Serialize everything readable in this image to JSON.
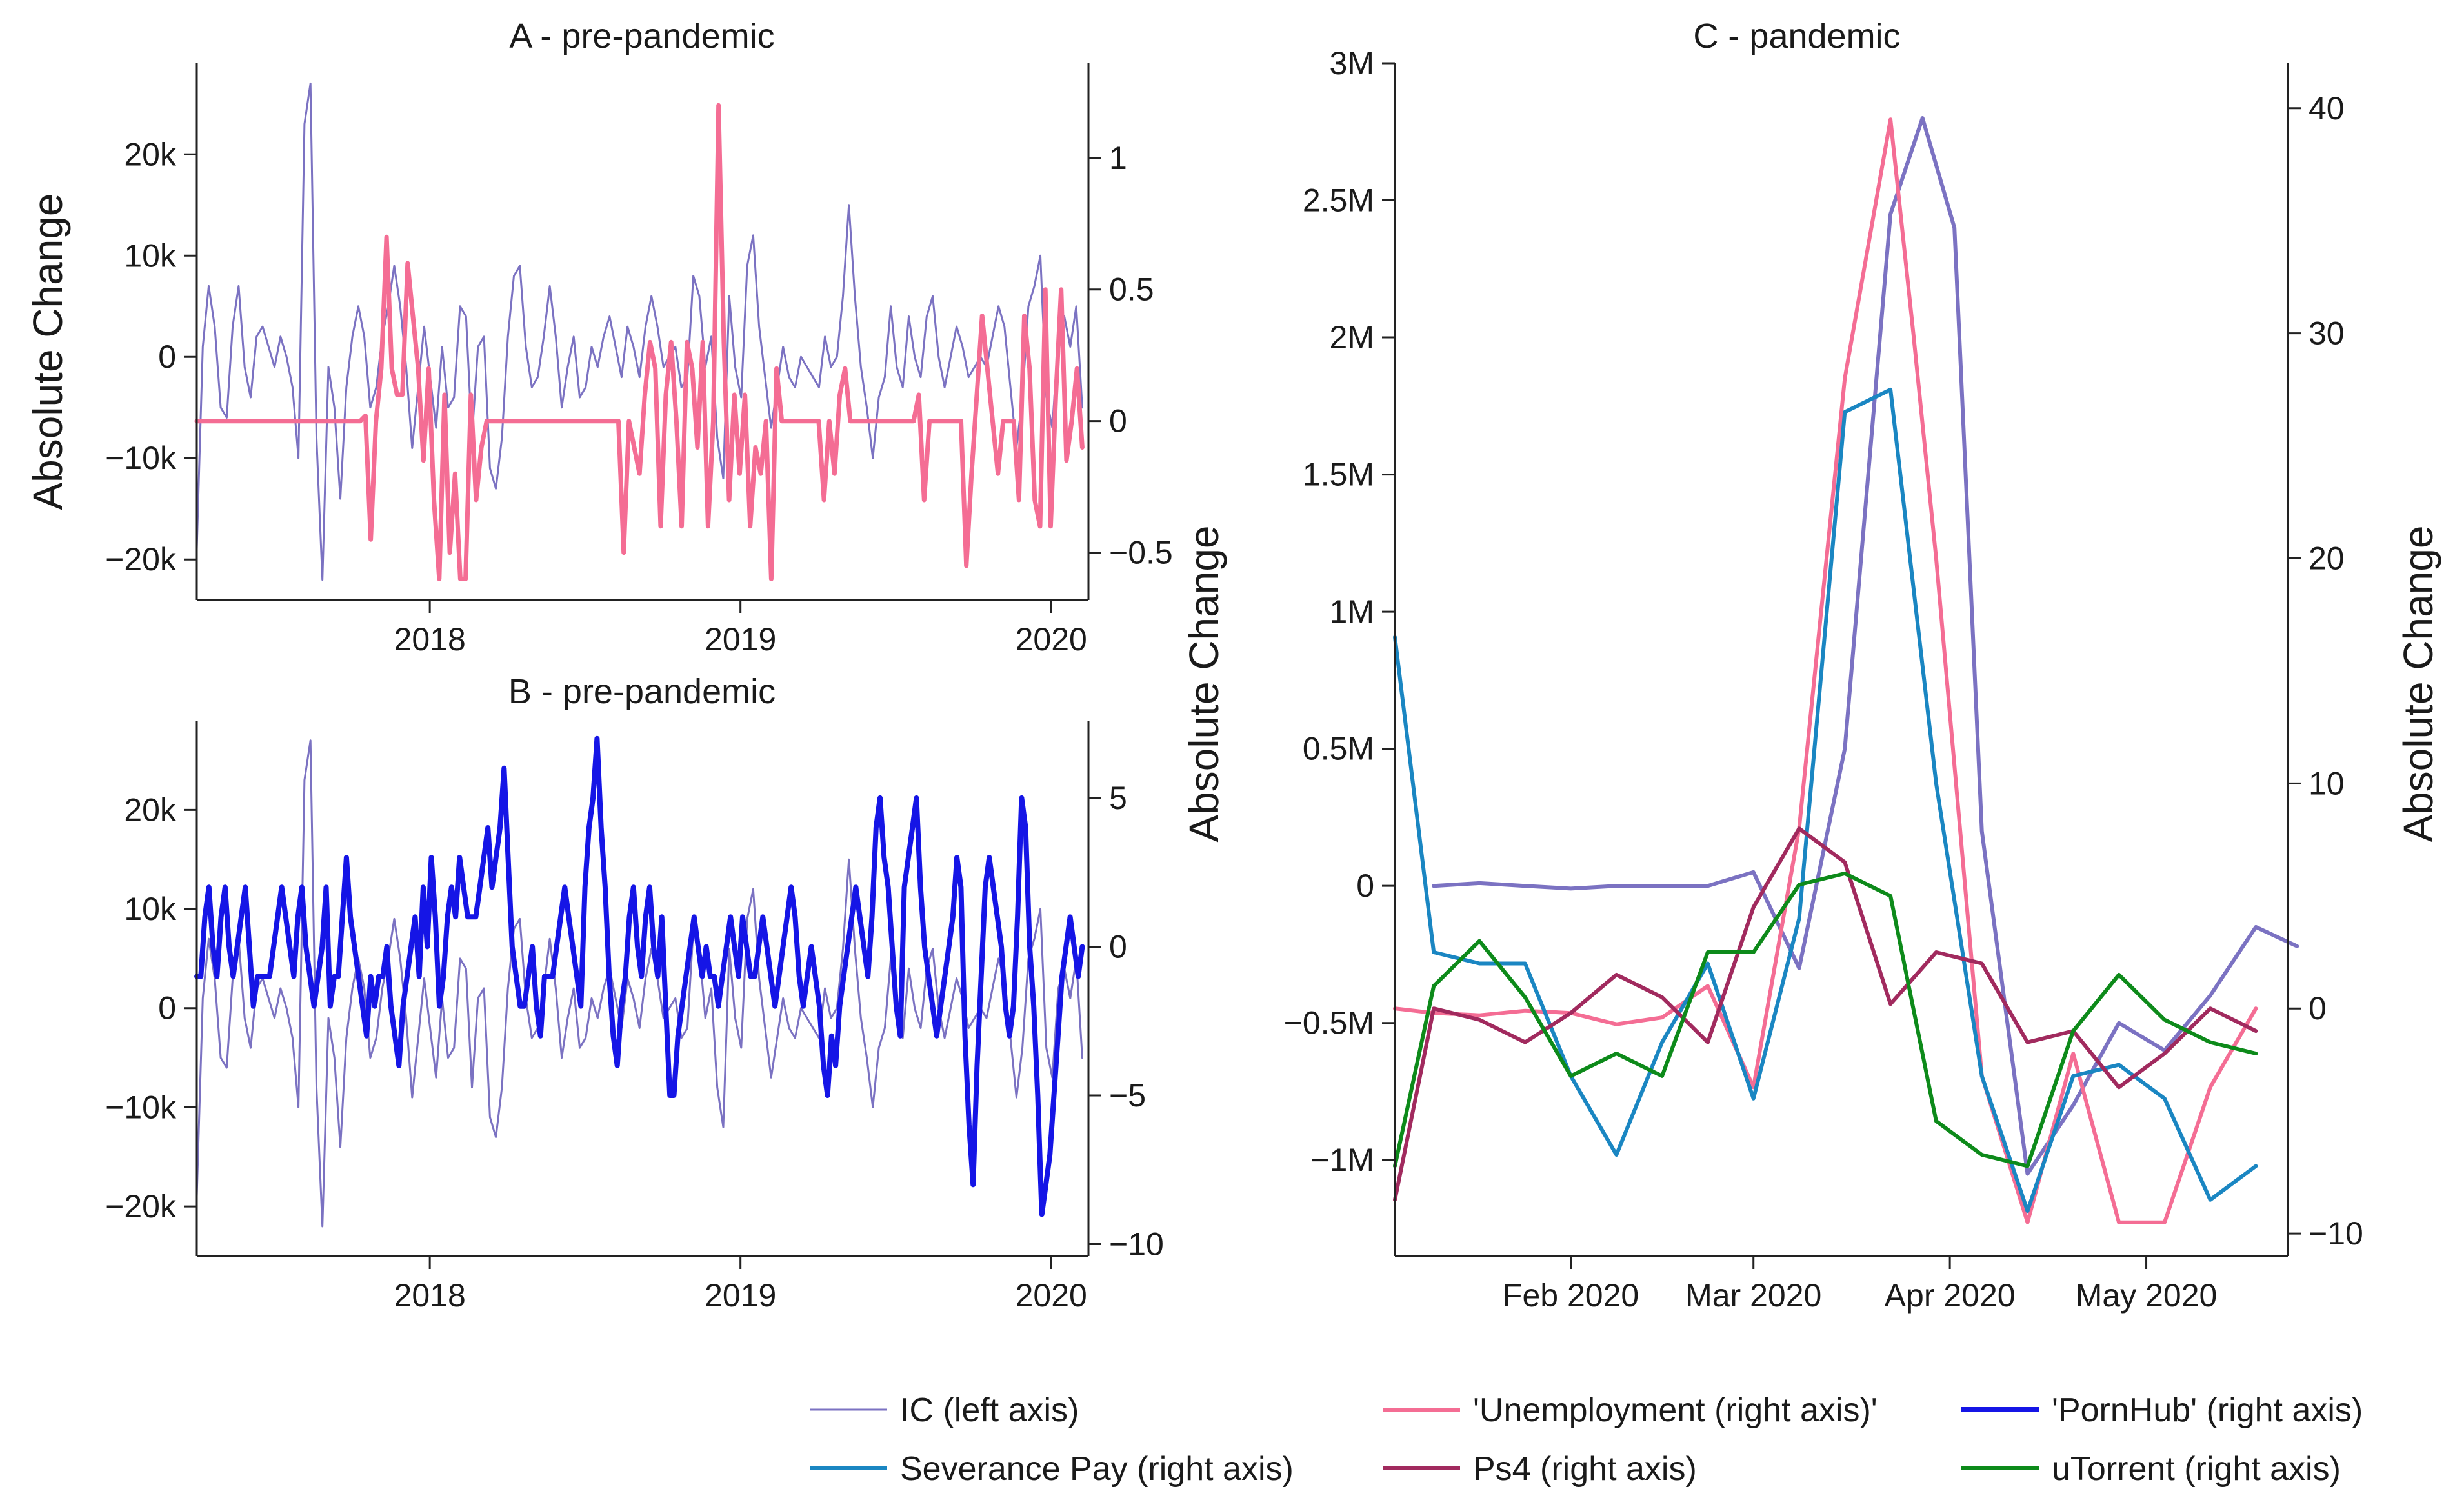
{
  "chart_data": [
    {
      "panel": "A",
      "type": "line",
      "title": "A - pre-pandemic",
      "ylabel_left": "Absolute Change",
      "ylabel_right": "",
      "x_ticks": [
        "2018",
        "2019",
        "2020"
      ],
      "x_tick_values": [
        2018.0,
        2019.0,
        2020.0
      ],
      "xlim": [
        2017.25,
        2020.12
      ],
      "left_ylim": [
        -24000,
        29000
      ],
      "left_ticks": [
        "20k",
        "10k",
        "0",
        "−10k",
        "−20k"
      ],
      "left_tick_values": [
        20000,
        10000,
        0,
        -10000,
        -20000
      ],
      "right_ylim": [
        -0.68,
        1.36
      ],
      "right_ticks": [
        "1",
        "0.5",
        "0",
        "−0.5"
      ],
      "right_tick_values": [
        1,
        0.5,
        0,
        -0.5
      ],
      "series": [
        {
          "name": "IC",
          "axis": "left",
          "color": "#7b72c2",
          "width": 3,
          "values": [
            -19000,
            1000,
            7000,
            3000,
            -5000,
            -6000,
            3000,
            7000,
            -1000,
            -4000,
            2000,
            3000,
            1000,
            -1000,
            2000,
            0,
            -3000,
            -10000,
            23000,
            27000,
            -8000,
            -22000,
            -1000,
            -5000,
            -14000,
            -3000,
            2000,
            5000,
            2000,
            -5000,
            -3000,
            2000,
            5000,
            9000,
            5000,
            -1000,
            -9000,
            -3000,
            3000,
            -2000,
            -7000,
            1000,
            -5000,
            -4000,
            5000,
            4000,
            -8000,
            1000,
            2000,
            -11000,
            -13000,
            -8000,
            2000,
            8000,
            9000,
            1000,
            -3000,
            -2000,
            2000,
            7000,
            2000,
            -5000,
            -1000,
            2000,
            -4000,
            -3000,
            1000,
            -1000,
            2000,
            4000,
            1000,
            -2000,
            3000,
            1000,
            -2000,
            3000,
            6000,
            3000,
            -1000,
            0,
            1000,
            -3000,
            -2000,
            8000,
            6000,
            -1000,
            2000,
            -8000,
            -12000,
            6000,
            -1000,
            -4000,
            9000,
            12000,
            3000,
            -2000,
            -7000,
            -3000,
            1000,
            -2000,
            -3000,
            0,
            -1000,
            -2000,
            -3000,
            2000,
            -1000,
            0,
            6000,
            15000,
            6000,
            -1000,
            -5000,
            -10000,
            -4000,
            -2000,
            5000,
            -1000,
            -3000,
            4000,
            0,
            -2000,
            4000,
            6000,
            0,
            -3000,
            0,
            3000,
            1000,
            -2000,
            -1000,
            0,
            -1000,
            2000,
            5000,
            3000,
            -3000,
            -9000,
            -4000,
            5000,
            7000,
            10000,
            -4000,
            -7000,
            2000,
            4000,
            1000,
            5000,
            -5000
          ]
        },
        {
          "name": "'Unemployment",
          "axis": "right",
          "color": "#f46d94",
          "width": 7,
          "values": [
            0,
            0,
            0,
            0,
            0,
            0,
            0,
            0,
            0,
            0,
            0,
            0,
            0,
            0,
            0,
            0,
            0,
            0,
            0,
            0,
            0,
            0,
            0,
            0,
            0,
            0,
            0,
            0,
            0,
            0,
            0,
            0,
            0.02,
            -0.45,
            0,
            0.2,
            0.7,
            0.2,
            0.1,
            0.1,
            0.6,
            0.4,
            0.2,
            -0.15,
            0.2,
            -0.3,
            -0.6,
            0.1,
            -0.5,
            -0.2,
            -0.6,
            -0.6,
            0.1,
            -0.3,
            -0.1,
            0,
            0,
            0,
            0,
            0,
            0,
            0,
            0,
            0,
            0,
            0,
            0,
            0,
            0,
            0,
            0,
            0,
            0,
            0,
            0,
            0,
            0,
            0,
            0,
            0,
            0,
            -0.5,
            0,
            -0.1,
            -0.2,
            0.1,
            0.3,
            0.2,
            -0.4,
            0.1,
            0.3,
            0,
            -0.4,
            0.3,
            0.2,
            -0.1,
            0.3,
            -0.4,
            0,
            1.2,
            0.3,
            -0.3,
            0.1,
            -0.2,
            0.1,
            -0.4,
            -0.1,
            -0.2,
            0,
            -0.6,
            0.2,
            0,
            0,
            0,
            0,
            0,
            0,
            0,
            0,
            -0.3,
            0,
            -0.2,
            0.1,
            0.2,
            0,
            0,
            0,
            0,
            0,
            0,
            0,
            0,
            0,
            0,
            0,
            0,
            0,
            0.1,
            -0.3,
            0,
            0,
            0,
            0,
            0,
            0,
            0,
            -0.55,
            -0.2,
            0.1,
            0.4,
            0.2,
            0,
            -0.2,
            0,
            0,
            0,
            -0.3,
            0.4,
            0.2,
            -0.3,
            -0.4,
            0.5,
            -0.4,
            0.1,
            0.5,
            -0.15,
            0,
            0.2,
            -0.1
          ]
        }
      ]
    },
    {
      "panel": "B",
      "type": "line",
      "title": "B - pre-pandemic",
      "ylabel_left": "",
      "ylabel_right": "",
      "x_ticks": [
        "2018",
        "2019",
        "2020"
      ],
      "x_tick_values": [
        2018.0,
        2019.0,
        2020.0
      ],
      "xlim": [
        2017.25,
        2020.12
      ],
      "left_ylim": [
        -25000,
        29000
      ],
      "left_ticks": [
        "20k",
        "10k",
        "0",
        "−10k",
        "−20k"
      ],
      "left_tick_values": [
        20000,
        10000,
        0,
        -10000,
        -20000
      ],
      "right_ylim": [
        -10.4,
        7.6
      ],
      "right_ticks": [
        "5",
        "0",
        "−5",
        "−10"
      ],
      "right_tick_values": [
        5,
        0,
        -5,
        -10
      ],
      "series": [
        {
          "name": "IC",
          "axis": "left",
          "color": "#7b72c2",
          "width": 3,
          "ref": "A.IC"
        },
        {
          "name": "'PornHub'",
          "axis": "right",
          "color": "#1515e6",
          "width": 8,
          "values": [
            -1,
            -1,
            1,
            2,
            0,
            -1,
            1,
            2,
            0,
            -1,
            0,
            1,
            2,
            0,
            -2,
            -1,
            -1,
            -1,
            -1,
            0,
            1,
            2,
            1,
            0,
            -1,
            1,
            2,
            0,
            -1,
            -2,
            -1,
            0,
            2,
            -2,
            -1,
            -1,
            1,
            3,
            1,
            0,
            -1,
            -2,
            -3,
            -1,
            -2,
            -1,
            -1,
            0,
            -2,
            -3,
            -4,
            -2,
            -1,
            0,
            1,
            -1,
            2,
            0,
            3,
            1,
            -2,
            -1,
            1,
            2,
            1,
            3,
            2,
            1,
            1,
            1,
            2,
            3,
            4,
            2,
            3,
            4,
            6,
            3,
            0,
            -1,
            -2,
            -2,
            -1,
            0,
            -2,
            -3,
            -1,
            -1,
            -1,
            0,
            1,
            2,
            1,
            0,
            -1,
            -2,
            2,
            4,
            5,
            7,
            4,
            2,
            -1,
            -3,
            -4,
            -2,
            -1,
            1,
            2,
            0,
            -1,
            1,
            2,
            0,
            -1,
            1,
            -2,
            -5,
            -5,
            -3,
            -2,
            -1,
            0,
            1,
            0,
            -1,
            0,
            -1,
            -1,
            -2,
            -1,
            0,
            1,
            0,
            -1,
            1,
            0,
            -1,
            -1,
            0,
            1,
            0,
            -1,
            -2,
            -1,
            0,
            1,
            2,
            1,
            -1,
            -2,
            -1,
            0,
            -1,
            -2,
            -4,
            -5,
            -3,
            -4,
            -2,
            -1,
            0,
            1,
            2,
            1,
            0,
            -1,
            1,
            4,
            5,
            3,
            2,
            0,
            -2,
            -3,
            2,
            3,
            4,
            5,
            2,
            0,
            -1,
            -2,
            -3,
            -2,
            -1,
            0,
            1,
            3,
            2,
            -3,
            -6,
            -8,
            -4,
            -1,
            2,
            3,
            2,
            1,
            0,
            -2,
            -3,
            -2,
            1,
            5,
            4,
            0,
            -2,
            -5,
            -9,
            -8,
            -7,
            -5,
            -3,
            -1,
            0,
            1,
            0,
            -1,
            0
          ]
        }
      ]
    },
    {
      "panel": "C",
      "type": "line",
      "title": "C - pandemic",
      "ylabel_left": "Absolute Change",
      "ylabel_right": "Absolute Change",
      "x_ticks": [
        "Feb 2020",
        "Mar 2020",
        "Apr 2020",
        "May 2020"
      ],
      "x_tick_values": [
        4,
        8,
        12.3,
        16.6
      ],
      "xlim": [
        0.15,
        19.7
      ],
      "left_ylim": [
        -1.35,
        3.0
      ],
      "left_units": "millions",
      "left_ticks": [
        "3M",
        "2.5M",
        "2M",
        "1.5M",
        "1M",
        "0.5M",
        "0",
        "−0.5M",
        "−1M"
      ],
      "left_tick_values": [
        3,
        2.5,
        2,
        1.5,
        1,
        0.5,
        0,
        -0.5,
        -1
      ],
      "right_ylim": [
        -11,
        42
      ],
      "right_ticks": [
        "40",
        "30",
        "20",
        "10",
        "0",
        "−10"
      ],
      "right_tick_values": [
        40,
        30,
        20,
        10,
        0,
        -10
      ],
      "series": [
        {
          "name": "IC",
          "axis": "left",
          "color": "#7b72c2",
          "width": 6,
          "x": [
            1,
            2,
            3,
            4,
            5,
            6,
            7,
            8,
            9,
            10,
            11,
            11.7,
            12.4,
            13,
            14,
            15,
            16,
            17,
            18,
            19,
            19.9
          ],
          "values": [
            0.0,
            0.01,
            0.0,
            -0.01,
            0.0,
            0.0,
            0.0,
            0.05,
            -0.3,
            0.5,
            2.45,
            2.8,
            2.4,
            0.2,
            -1.05,
            -0.8,
            -0.5,
            -0.6,
            -0.4,
            -0.15,
            -0.22
          ]
        },
        {
          "name": "'Unemployment",
          "axis": "right",
          "color": "#f46d94",
          "width": 6,
          "x": [
            0.15,
            1,
            2,
            3,
            4,
            5,
            6,
            7,
            8,
            9,
            10,
            11,
            11.5,
            12,
            13,
            14,
            15,
            16,
            17,
            18,
            19
          ],
          "values": [
            0,
            -0.2,
            -0.3,
            -0.1,
            -0.2,
            -0.7,
            -0.4,
            1.0,
            -3.5,
            8,
            28,
            39.5,
            30,
            20,
            -3,
            -9.5,
            -2,
            -9.5,
            -9.5,
            -3.5,
            0
          ]
        },
        {
          "name": "Severance Pay",
          "axis": "right",
          "color": "#1a86c2",
          "width": 6,
          "x": [
            0.15,
            1,
            2,
            3,
            4,
            5,
            6,
            7,
            8,
            9,
            10,
            11,
            12,
            13,
            14,
            15,
            16,
            17,
            18,
            19
          ],
          "values": [
            16.5,
            2.5,
            2,
            2,
            -3,
            -6.5,
            -1.5,
            2,
            -4,
            4,
            26.5,
            27.5,
            10,
            -3,
            -9,
            -3,
            -2.5,
            -4,
            -8.5,
            -7
          ]
        },
        {
          "name": "Ps4",
          "axis": "right",
          "color": "#a12a5e",
          "width": 6,
          "x": [
            0.15,
            1,
            2,
            3,
            4,
            5,
            6,
            7,
            8,
            9,
            10,
            11,
            12,
            13,
            14,
            15,
            16,
            17,
            18,
            19
          ],
          "values": [
            -8.5,
            0,
            -0.5,
            -1.5,
            -0.2,
            1.5,
            0.5,
            -1.5,
            4.5,
            8,
            6.5,
            0.2,
            2.5,
            2,
            -1.5,
            -1,
            -3.5,
            -2,
            0,
            -1
          ]
        },
        {
          "name": "uTorrent",
          "axis": "right",
          "color": "#0d8a1a",
          "width": 6,
          "x": [
            0.15,
            1,
            2,
            3,
            4,
            5,
            6,
            7,
            8,
            9,
            10,
            11,
            12,
            13,
            14,
            15,
            16,
            17,
            18,
            19
          ],
          "values": [
            -7,
            1,
            3,
            0.5,
            -3,
            -2,
            -3,
            2.5,
            2.5,
            5.5,
            6,
            5,
            -5,
            -6.5,
            -7,
            -1,
            1.5,
            -0.5,
            -1.5,
            -2
          ]
        }
      ]
    }
  ],
  "legend": {
    "items": [
      {
        "label": "IC  (left axis)",
        "color": "#7b72c2",
        "width": 3
      },
      {
        "label": "'Unemployment (right axis)'",
        "color": "#f46d94",
        "width": 6
      },
      {
        "label": "'PornHub' (right axis)",
        "color": "#1515e6",
        "width": 8
      },
      {
        "label": "Severance Pay (right axis)",
        "color": "#1a86c2",
        "width": 6
      },
      {
        "label": "Ps4 (right axis)",
        "color": "#a12a5e",
        "width": 6
      },
      {
        "label": "uTorrent (right axis)",
        "color": "#0d8a1a",
        "width": 6
      }
    ]
  }
}
